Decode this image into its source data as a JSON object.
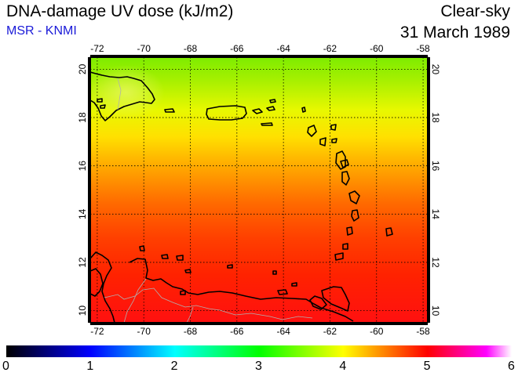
{
  "header": {
    "title": "DNA-damage UV dose (kJ/m2)",
    "source": "MSR - KNMI",
    "condition": "Clear-sky",
    "date": "31 March 1989"
  },
  "map": {
    "region": "Caribbean",
    "lon_range": [
      -72.3,
      -57.8
    ],
    "lat_range": [
      9.5,
      20.5
    ],
    "lon_ticks": [
      "-72",
      "-70",
      "-68",
      "-66",
      "-64",
      "-62",
      "-60",
      "-58"
    ],
    "lat_ticks": [
      "20",
      "18",
      "16",
      "14",
      "12",
      "10"
    ],
    "gridlines": true
  },
  "colorbar": {
    "min": 0,
    "max": 6,
    "labels": [
      "0",
      "1",
      "2",
      "3",
      "4",
      "5",
      "6"
    ],
    "colors": [
      "#000000",
      "#0000ff",
      "#00ffff",
      "#00ff00",
      "#ffff00",
      "#ff0000",
      "#ff00ff",
      "#ffffff"
    ]
  }
}
